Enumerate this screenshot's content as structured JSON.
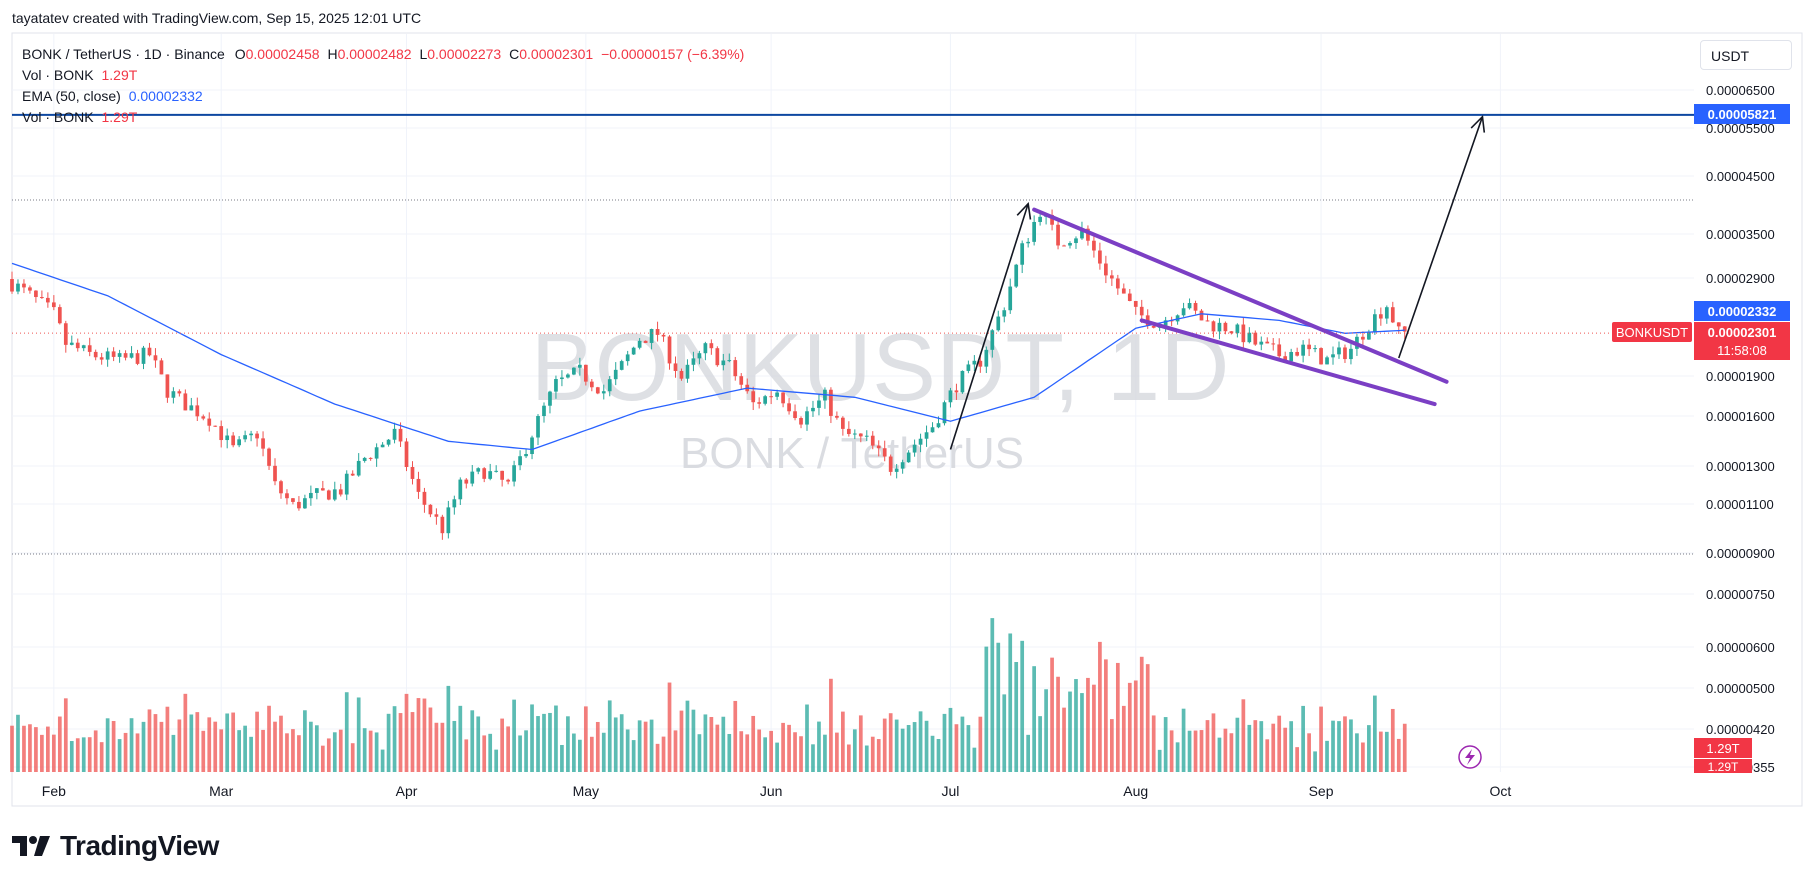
{
  "credit": "tayatatev created with TradingView.com, Sep 15, 2025 12:01 UTC",
  "brand": "TradingView",
  "currency": "USDT",
  "legend": {
    "pair": "BONK / TetherUS · 1D · Binance",
    "o_label": "O",
    "o": "0.00002458",
    "h_label": "H",
    "h": "0.00002482",
    "l_label": "L",
    "l": "0.00002273",
    "c_label": "C",
    "c": "0.00002301",
    "change": "−0.00000157 (−6.39%)",
    "vol_label": "Vol · BONK",
    "vol": "1.29T",
    "ema_label": "EMA (50, close)",
    "ema": "0.00002332",
    "vol2_label": "Vol · BONK",
    "vol2": "1.29T"
  },
  "watermark": {
    "symbol": "BONKUSDT, 1D",
    "name": "BONK / TetherUS"
  },
  "badges": {
    "target": "0.00005821",
    "ema": "0.00002332",
    "symbol": "BONKUSDT",
    "price": "0.00002301",
    "countdown": "11:58:08",
    "vol1": "1.29T",
    "vol2": "1.29T"
  },
  "colors": {
    "up": "#26a69a",
    "down": "#ef5350",
    "ema": "#2962ff",
    "target_line": "#0d47a1",
    "wedge": "#7b3fc4",
    "arrow": "#131722"
  },
  "chart_data": {
    "type": "candlestick",
    "symbol": "BONK / TetherUS",
    "interval": "1D",
    "y_scale": "log",
    "y_ticks": [
      "0.00006500",
      "0.00005500",
      "0.00004500",
      "0.00003500",
      "0.00002900",
      "0.00001900",
      "0.00001600",
      "0.00001300",
      "0.00001100",
      "0.00000900",
      "0.00000750",
      "0.00000600",
      "0.00000500",
      "0.00000420",
      "0.00000355"
    ],
    "x_ticks": [
      "Feb",
      "Mar",
      "Apr",
      "May",
      "Jun",
      "Jul",
      "Aug",
      "Sep",
      "Oct"
    ],
    "x_tick_dates": [
      "2025-02-01",
      "2025-03-01",
      "2025-04-01",
      "2025-05-01",
      "2025-06-01",
      "2025-07-01",
      "2025-08-01",
      "2025-09-01",
      "2025-10-01"
    ],
    "x_range": [
      "2025-01-25",
      "2025-10-18"
    ],
    "y_range": [
      8.7e-06,
      7e-06
    ],
    "anchors": [
      [
        "2025-01-25",
        2.9e-05
      ],
      [
        "2025-01-29",
        2.7e-05
      ],
      [
        "2025-02-02",
        2.5e-05
      ],
      [
        "2025-02-04",
        2.2e-05
      ],
      [
        "2025-02-08",
        2.1e-05
      ],
      [
        "2025-02-13",
        2.05e-05
      ],
      [
        "2025-02-18",
        2.1e-05
      ],
      [
        "2025-02-21",
        1.8e-05
      ],
      [
        "2025-02-24",
        1.7e-05
      ],
      [
        "2025-02-28",
        1.6e-05
      ],
      [
        "2025-03-04",
        1.4e-05
      ],
      [
        "2025-03-08",
        1.5e-05
      ],
      [
        "2025-03-11",
        1.2e-05
      ],
      [
        "2025-03-14",
        1.1e-05
      ],
      [
        "2025-03-18",
        1.15e-05
      ],
      [
        "2025-03-22",
        1.18e-05
      ],
      [
        "2025-03-26",
        1.35e-05
      ],
      [
        "2025-03-31",
        1.5e-05
      ],
      [
        "2025-04-04",
        1.15e-05
      ],
      [
        "2025-04-08",
        1e-05
      ],
      [
        "2025-04-11",
        1.2e-05
      ],
      [
        "2025-04-15",
        1.28e-05
      ],
      [
        "2025-04-19",
        1.2e-05
      ],
      [
        "2025-04-23",
        1.5e-05
      ],
      [
        "2025-04-27",
        1.85e-05
      ],
      [
        "2025-05-01",
        1.95e-05
      ],
      [
        "2025-05-05",
        1.8e-05
      ],
      [
        "2025-05-08",
        2e-05
      ],
      [
        "2025-05-11",
        2.25e-05
      ],
      [
        "2025-05-14",
        2.3e-05
      ],
      [
        "2025-05-18",
        1.9e-05
      ],
      [
        "2025-05-22",
        2.15e-05
      ],
      [
        "2025-05-26",
        2e-05
      ],
      [
        "2025-05-30",
        1.7e-05
      ],
      [
        "2025-06-03",
        1.8e-05
      ],
      [
        "2025-06-07",
        1.6e-05
      ],
      [
        "2025-06-11",
        1.75e-05
      ],
      [
        "2025-06-14",
        1.5e-05
      ],
      [
        "2025-06-18",
        1.45e-05
      ],
      [
        "2025-06-22",
        1.3e-05
      ],
      [
        "2025-06-25",
        1.4e-05
      ],
      [
        "2025-06-29",
        1.55e-05
      ],
      [
        "2025-07-03",
        1.85e-05
      ],
      [
        "2025-07-07",
        2.05e-05
      ],
      [
        "2025-07-11",
        2.6e-05
      ],
      [
        "2025-07-14",
        3.3e-05
      ],
      [
        "2025-07-17",
        3.9e-05
      ],
      [
        "2025-07-20",
        3.4e-05
      ],
      [
        "2025-07-24",
        3.55e-05
      ],
      [
        "2025-07-28",
        3e-05
      ],
      [
        "2025-08-02",
        2.5e-05
      ],
      [
        "2025-08-06",
        2.4e-05
      ],
      [
        "2025-08-10",
        2.6e-05
      ],
      [
        "2025-08-14",
        2.4e-05
      ],
      [
        "2025-08-18",
        2.35e-05
      ],
      [
        "2025-08-22",
        2.2e-05
      ],
      [
        "2025-08-26",
        2.1e-05
      ],
      [
        "2025-08-30",
        2.15e-05
      ],
      [
        "2025-09-03",
        2.05e-05
      ],
      [
        "2025-09-07",
        2.15e-05
      ],
      [
        "2025-09-10",
        2.4e-05
      ],
      [
        "2025-09-13",
        2.6e-05
      ],
      [
        "2025-09-15",
        2.3e-05
      ]
    ],
    "ema_anchors": [
      [
        "2025-01-25",
        3.1e-05
      ],
      [
        "2025-02-10",
        2.7e-05
      ],
      [
        "2025-03-01",
        2.1e-05
      ],
      [
        "2025-03-20",
        1.7e-05
      ],
      [
        "2025-04-08",
        1.45e-05
      ],
      [
        "2025-04-22",
        1.4e-05
      ],
      [
        "2025-05-10",
        1.65e-05
      ],
      [
        "2025-05-28",
        1.82e-05
      ],
      [
        "2025-06-15",
        1.75e-05
      ],
      [
        "2025-07-01",
        1.58e-05
      ],
      [
        "2025-07-15",
        1.75e-05
      ],
      [
        "2025-08-01",
        2.35e-05
      ],
      [
        "2025-08-12",
        2.5e-05
      ],
      [
        "2025-08-25",
        2.43e-05
      ],
      [
        "2025-09-05",
        2.3e-05
      ],
      [
        "2025-09-15",
        2.33e-05
      ]
    ],
    "volume_range": [
      0,
      1.0
    ],
    "target_price": 5.821e-05,
    "last_price": 2.301e-05,
    "ema_last": 2.332e-05,
    "annotations": {
      "rally_arrow": [
        [
          "2025-07-01",
          1.4e-05
        ],
        [
          "2025-07-14",
          4e-05
        ]
      ],
      "wedge_upper": [
        [
          "2025-07-15",
          3.9e-05
        ],
        [
          "2025-09-22",
          1.87e-05
        ]
      ],
      "wedge_lower": [
        [
          "2025-08-02",
          2.43e-05
        ],
        [
          "2025-09-20",
          1.7e-05
        ]
      ],
      "projection_arrow": [
        [
          "2025-09-14",
          2.07e-05
        ],
        [
          "2025-09-28",
          5.8e-05
        ]
      ]
    }
  }
}
